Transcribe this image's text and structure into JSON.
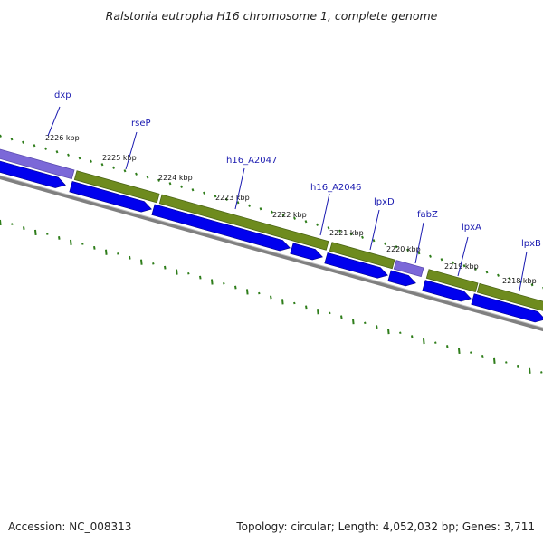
{
  "title": "Ralstonia eutropha H16 chromosome 1, complete genome",
  "footer": {
    "accession": "Accession: NC_008313",
    "stats": "Topology: circular; Length: 4,052,032 bp; Genes: 3,711"
  },
  "colors": {
    "cds_forward": "#0000ee",
    "gene_olive": "#6e8b1e",
    "gene_purple": "#7b68d8",
    "backbone": "#808080",
    "gc_ticks": "#2e7d1a",
    "label": "#1a1ab0"
  },
  "tick_labels": [
    "2226 kbp",
    "2225 kbp",
    "2224 kbp",
    "2223 kbp",
    "2222 kbp",
    "2221 kbp",
    "2220 kbp",
    "2219 kbp",
    "2218 kbp"
  ],
  "gene_labels": [
    "dxp",
    "rseP",
    "h16_A2047",
    "h16_A2046",
    "lpxD",
    "fabZ",
    "lpxA",
    "lpxB"
  ]
}
